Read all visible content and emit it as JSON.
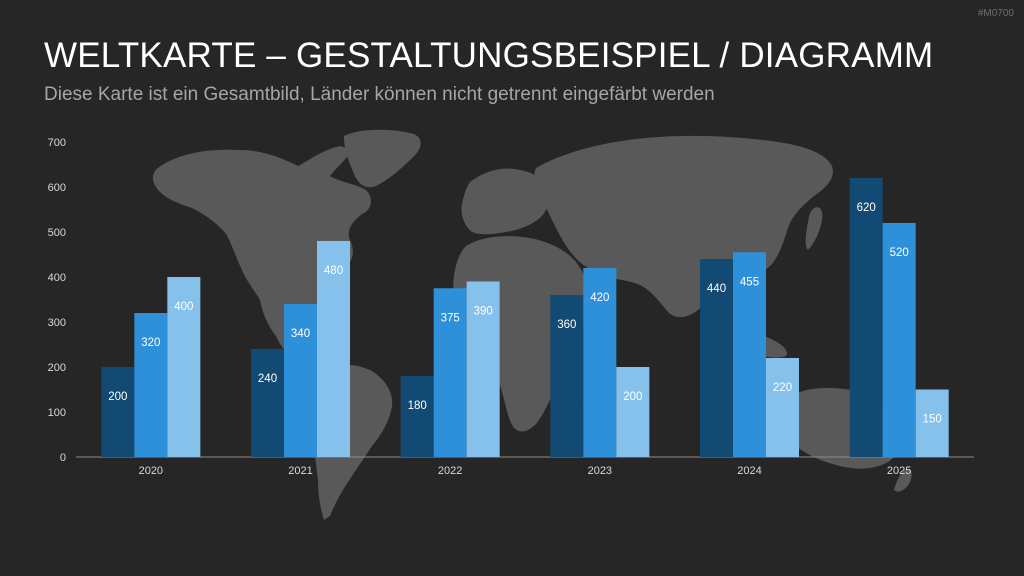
{
  "slide": {
    "id": "#M0700",
    "title": "WELTKARTE – GESTALTUNGSBEISPIEL / DIAGRAMM",
    "subtitle": "Diese Karte ist ein Gesamtbild, Länder können nicht getrennt eingefärbt werden"
  },
  "colors": {
    "background": "#262626",
    "map": "#595959",
    "axis": "#8c8c8c",
    "series": [
      "#124a73",
      "#2e90d8",
      "#85c1eb"
    ]
  },
  "chart_data": {
    "type": "bar",
    "categories": [
      "2020",
      "2021",
      "2022",
      "2023",
      "2024",
      "2025"
    ],
    "series": [
      {
        "values": [
          200,
          240,
          180,
          360,
          440,
          620
        ]
      },
      {
        "values": [
          320,
          340,
          375,
          420,
          455,
          520
        ]
      },
      {
        "values": [
          400,
          480,
          390,
          200,
          220,
          150
        ]
      }
    ],
    "ylim": [
      0,
      700
    ],
    "yticks": [
      0,
      100,
      200,
      300,
      400,
      500,
      600,
      700
    ],
    "grid": false,
    "legend": "none",
    "background_image": "world-map"
  }
}
